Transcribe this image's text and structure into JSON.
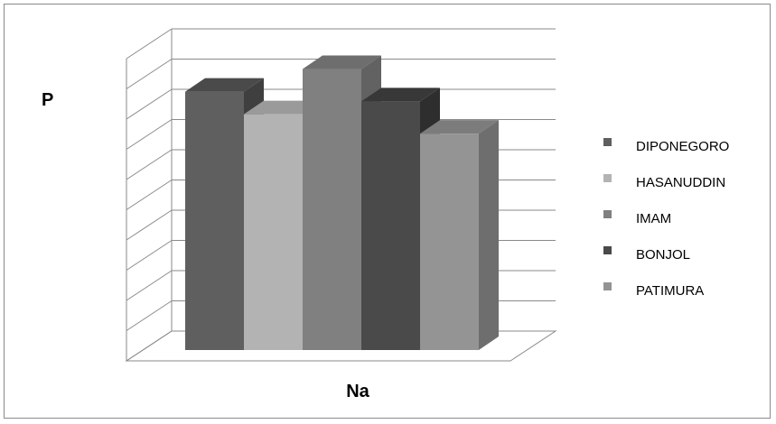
{
  "chart_data": {
    "type": "bar",
    "style": "3d-clustered-column",
    "categories": [
      ""
    ],
    "series": [
      {
        "name": "DIPONEGORO",
        "values": [
          8.0
        ],
        "color": "#5f5f5f",
        "side_color": "#3f3f3f",
        "top_color": "#4a4a4a"
      },
      {
        "name": "HASANUDDIN",
        "values": [
          7.3
        ],
        "color": "#b3b3b3",
        "side_color": "#8f8f8f",
        "top_color": "#9a9a9a"
      },
      {
        "name": "IMAM",
        "values": [
          8.7
        ],
        "color": "#808080",
        "side_color": "#626262",
        "top_color": "#6e6e6e"
      },
      {
        "name": "BONJOL",
        "values": [
          7.7
        ],
        "color": "#4a4a4a",
        "side_color": "#2e2e2e",
        "top_color": "#383838"
      },
      {
        "name": "PATIMURA",
        "values": [
          6.7
        ],
        "color": "#949494",
        "side_color": "#6e6e6e",
        "top_color": "#7c7c7c"
      }
    ],
    "title": "",
    "xlabel": "Na",
    "ylabel": "P",
    "ylim": [
      0,
      10
    ],
    "grid": true,
    "legend_position": "right"
  }
}
